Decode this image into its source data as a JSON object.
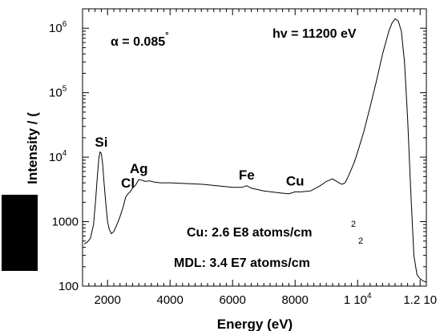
{
  "chart_data": {
    "type": "line",
    "xlabel": "Energy (eV)",
    "ylabel": "Intensity / (",
    "xlim": [
      1200,
      12200
    ],
    "ylim": [
      100,
      2000000
    ],
    "yscale": "log",
    "x_ticks": [
      {
        "value": 2000,
        "label": "2000"
      },
      {
        "value": 4000,
        "label": "4000"
      },
      {
        "value": 6000,
        "label": "6000"
      },
      {
        "value": 8000,
        "label": "8000"
      },
      {
        "value": 10000,
        "label": "1 10"
      },
      {
        "value": 12000,
        "label": "1.2 10"
      }
    ],
    "x_tick_exponents": {
      "10000": "4"
    },
    "y_ticks": [
      {
        "value": 100,
        "label": "100",
        "exp": ""
      },
      {
        "value": 1000,
        "label": "1000",
        "exp": ""
      },
      {
        "value": 10000,
        "label": "10",
        "exp": "4"
      },
      {
        "value": 100000,
        "label": "10",
        "exp": "5"
      },
      {
        "value": 1000000,
        "label": "10",
        "exp": "6"
      }
    ],
    "series": [
      {
        "x": [
          1250,
          1350,
          1450,
          1550,
          1620,
          1680,
          1720,
          1760,
          1800,
          1840,
          1880,
          1940,
          2000,
          2060,
          2120,
          2200,
          2300,
          2400,
          2500,
          2580,
          2650,
          2720,
          2800,
          2900,
          3000,
          3100,
          3200,
          3350,
          3500,
          3700,
          4000,
          4500,
          5000,
          5500,
          6000,
          6300,
          6450,
          6600,
          7000,
          7500,
          7800,
          8000,
          8200,
          8500,
          8800,
          9000,
          9200,
          9400,
          9500,
          9600,
          9700,
          9800,
          9900,
          10000,
          10200,
          10400,
          10600,
          10800,
          11000,
          11100,
          11200,
          11300,
          11400,
          11500,
          11600,
          11700,
          11800,
          11900,
          12000,
          12100,
          12200
        ],
        "y": [
          450,
          480,
          550,
          900,
          2200,
          5500,
          9500,
          12000,
          11500,
          8000,
          4500,
          2000,
          1000,
          750,
          650,
          700,
          900,
          1200,
          1700,
          2400,
          2700,
          2900,
          3300,
          3700,
          4500,
          4400,
          4200,
          4300,
          4100,
          4000,
          4000,
          3900,
          3800,
          3600,
          3400,
          3400,
          3600,
          3300,
          3000,
          2800,
          2700,
          2900,
          2900,
          3000,
          3600,
          4200,
          4600,
          4000,
          3800,
          4000,
          5000,
          6500,
          8500,
          12000,
          25000,
          60000,
          150000,
          400000,
          900000,
          1200000,
          1400000,
          1300000,
          900000,
          300000,
          40000,
          3000,
          300,
          150,
          130,
          120,
          115
        ]
      }
    ],
    "peak_labels": [
      {
        "text": "Si",
        "x": 1800,
        "y": 11500
      },
      {
        "text": "Cl",
        "x": 2650,
        "y": 2700
      },
      {
        "text": "Ag",
        "x": 3000,
        "y": 4500
      },
      {
        "text": "Fe",
        "x": 6450,
        "y": 3600
      },
      {
        "text": "Cu",
        "x": 8000,
        "y": 2900
      }
    ],
    "annotations": {
      "alpha_prefix": "α = 0.085",
      "alpha_sup": "°",
      "energy": "hv = 11200 eV",
      "cu_line": "Cu:   2.6 E8 atoms/cm",
      "cu_sup": "2",
      "mdl_line": "MDL: 3.4 E7 atoms/cm",
      "mdl_sup": "2"
    },
    "colors": {
      "line": "#000000",
      "redaction": "#000000"
    }
  }
}
